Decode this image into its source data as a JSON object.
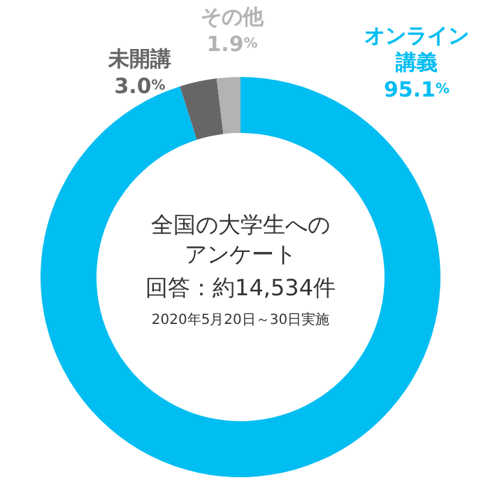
{
  "chart_data": {
    "type": "donut",
    "title": "全国の大学生へのアンケート",
    "subtitle": "回答：約14,534件",
    "annotations": [
      "2020年5月20日～30日実施"
    ],
    "categories": [
      "オンライン講義",
      "未開講",
      "その他"
    ],
    "values": [
      95.1,
      3.0,
      1.9
    ],
    "value_labels": [
      "95.1%",
      "3.0%",
      "1.9%"
    ],
    "colors": [
      "#00bdf2",
      "#666666",
      "#b3b3b3"
    ],
    "legend": false
  }
}
